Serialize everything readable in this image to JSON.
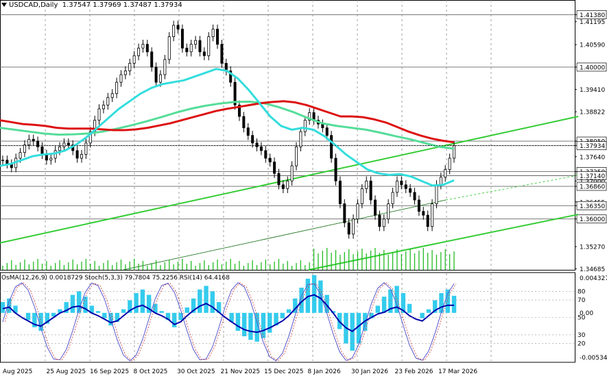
{
  "header": {
    "symbol_label": "USDCAD,Daily",
    "ohlc": "1.37547 1.37969 1.37487 1.37934"
  },
  "sub_header": "OsMA(12,26,9) 0.0018729  Stoch(5,3,3) 79.7804 75.2256  RSI(14) 64.4168",
  "chart_data": [
    {
      "type": "line",
      "name": "price",
      "xlabel": "",
      "ylabel": "",
      "x_ticks": [
        "Aug 2025",
        "25 Aug 2025",
        "16 Sep 2025",
        "8 Oct 2025",
        "30 Oct 2025",
        "21 Nov 2025",
        "15 Dec 2025",
        "8 Jan 2026",
        "30 Jan 2026",
        "23 Feb 2026",
        "17 Mar 2026"
      ],
      "y_ticks": [
        1.4138,
        1.41195,
        1.4059,
        1.4,
        1.3941,
        1.38822,
        1.3805,
        1.3793,
        1.3764,
        1.3725,
        1.3714,
        1.37,
        1.3686,
        1.3645,
        1.3635,
        1.36,
        1.3527,
        1.34685
      ],
      "y_tick_labels": [
        "1.41380",
        "1.41195",
        "1.40590",
        "1.40000",
        "1.39410",
        "1.38822",
        "1.38050",
        "1.37934",
        "1.37640",
        "1.37250",
        "1.37140",
        "1.37000",
        "1.36860",
        "1.36455",
        "1.36350",
        "1.36000",
        "1.35270",
        "1.34685"
      ],
      "boxed_levels": [
        "1.41380",
        "1.40000",
        "1.38050",
        "1.37934",
        "1.37250",
        "1.37140",
        "1.36860",
        "1.36350",
        "1.36000"
      ],
      "ylim": [
        1.3466,
        1.4155
      ],
      "close": [
        1.3755,
        1.3745,
        1.3735,
        1.376,
        1.3775,
        1.3795,
        1.381,
        1.3805,
        1.379,
        1.377,
        1.3755,
        1.376,
        1.378,
        1.379,
        1.38,
        1.3795,
        1.378,
        1.376,
        1.377,
        1.38,
        1.383,
        1.386,
        1.389,
        1.39,
        1.392,
        1.393,
        1.396,
        1.398,
        1.399,
        1.401,
        1.403,
        1.405,
        1.406,
        1.404,
        1.4,
        1.396,
        1.398,
        1.402,
        1.408,
        1.411,
        1.41,
        1.405,
        1.404,
        1.406,
        1.407,
        1.404,
        1.403,
        1.408,
        1.41,
        1.406,
        1.401,
        1.399,
        1.396,
        1.39,
        1.387,
        1.384,
        1.382,
        1.38,
        1.379,
        1.378,
        1.376,
        1.375,
        1.372,
        1.369,
        1.368,
        1.37,
        1.374,
        1.379,
        1.383,
        1.386,
        1.388,
        1.386,
        1.385,
        1.384,
        1.382,
        1.376,
        1.37,
        1.364,
        1.359,
        1.356,
        1.36,
        1.364,
        1.368,
        1.37,
        1.365,
        1.361,
        1.358,
        1.36,
        1.364,
        1.367,
        1.37,
        1.369,
        1.368,
        1.367,
        1.365,
        1.362,
        1.361,
        1.358,
        1.364,
        1.369,
        1.371,
        1.373,
        1.376,
        1.3793
      ],
      "ma_red": [
        1.386,
        1.3855,
        1.385,
        1.3848,
        1.3845,
        1.384,
        1.3838,
        1.3838,
        1.3838,
        1.3836,
        1.3834,
        1.3834,
        1.3836,
        1.384,
        1.3846,
        1.3852,
        1.386,
        1.3868,
        1.3876,
        1.3884,
        1.389,
        1.3895,
        1.39,
        1.3905,
        1.3908,
        1.391,
        1.3907,
        1.39,
        1.389,
        1.388,
        1.387,
        1.387,
        1.3868,
        1.3862,
        1.3854,
        1.3842,
        1.383,
        1.382,
        1.3812,
        1.3806,
        1.3802
      ],
      "ma_green": [
        1.384,
        1.3835,
        1.383,
        1.3825,
        1.3822,
        1.3823,
        1.3825,
        1.383,
        1.3838,
        1.3847,
        1.3857,
        1.3868,
        1.388,
        1.389,
        1.3898,
        1.3904,
        1.3908,
        1.3909,
        1.3905,
        1.3895,
        1.3882,
        1.3866,
        1.3852,
        1.3845,
        1.384,
        1.3835,
        1.3827,
        1.3818,
        1.381,
        1.38,
        1.379,
        1.3785
      ],
      "ma_cyan": [
        1.374,
        1.3745,
        1.3755,
        1.3765,
        1.377,
        1.3772,
        1.378,
        1.3795,
        1.3815,
        1.384,
        1.3865,
        1.389,
        1.391,
        1.393,
        1.3945,
        1.3955,
        1.396,
        1.3965,
        1.3975,
        1.3985,
        1.3995,
        1.399,
        1.397,
        1.394,
        1.3905,
        1.387,
        1.3845,
        1.3835,
        1.384,
        1.3835,
        1.3818,
        1.3795,
        1.377,
        1.375,
        1.373,
        1.372,
        1.3716,
        1.3718,
        1.3712,
        1.37,
        1.3688,
        1.369,
        1.3702
      ]
    },
    {
      "type": "bar",
      "name": "OsMA",
      "ylim": [
        -0.005342,
        0.004327
      ],
      "y_tick_labels": [
        "0.004327",
        "0.00",
        "-0.005342"
      ],
      "stoch_levels": [
        "80",
        "20"
      ],
      "rsi_levels": [
        "70",
        "50",
        "30"
      ],
      "values": [
        0.0012,
        0.0016,
        0.0008,
        0.0,
        -0.0008,
        -0.0016,
        -0.002,
        -0.0012,
        -0.0004,
        0.0004,
        0.0012,
        0.002,
        0.0024,
        0.0018,
        0.0008,
        0.0002,
        -0.0006,
        -0.0014,
        -0.001,
        0.0004,
        0.0014,
        0.0022,
        0.0026,
        0.002,
        0.001,
        0.0002,
        -0.0008,
        -0.0016,
        -0.0008,
        0.0006,
        0.0016,
        0.0026,
        0.003,
        0.0024,
        0.0012,
        0.0,
        -0.001,
        -0.002,
        -0.0026,
        -0.003,
        -0.0032,
        -0.0028,
        -0.0022,
        -0.0014,
        -0.0006,
        0.0004,
        0.0016,
        0.0028,
        0.0038,
        0.0042,
        0.0036,
        0.002,
        0.0002,
        -0.0018,
        -0.0034,
        -0.0042,
        -0.0034,
        -0.002,
        -0.0006,
        0.0008,
        0.0018,
        0.0026,
        0.003,
        0.0022,
        0.001,
        0.0,
        -0.0006,
        0.0004,
        0.0014,
        0.0022,
        0.0026,
        0.0019
      ],
      "rsi": [
        60,
        62,
        55,
        50,
        46,
        42,
        40,
        45,
        50,
        55,
        58,
        62,
        63,
        60,
        55,
        52,
        48,
        44,
        46,
        52,
        58,
        62,
        64,
        60,
        55,
        52,
        48,
        42,
        45,
        52,
        58,
        63,
        66,
        62,
        56,
        50,
        45,
        40,
        36,
        34,
        33,
        35,
        38,
        42,
        46,
        52,
        60,
        68,
        74,
        76,
        72,
        64,
        55,
        45,
        38,
        34,
        40,
        46,
        50,
        54,
        56,
        60,
        62,
        58,
        52,
        48,
        46,
        52,
        58,
        62,
        64,
        64
      ]
    }
  ]
}
